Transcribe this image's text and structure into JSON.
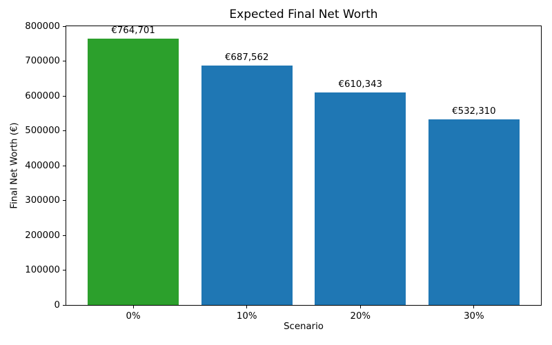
{
  "figure": {
    "background": "#ffffff"
  },
  "chart_data": {
    "type": "bar",
    "title": "Expected Final Net Worth",
    "xlabel": "Scenario",
    "ylabel": "Final Net Worth (€)",
    "categories": [
      "0%",
      "10%",
      "20%",
      "30%"
    ],
    "values": [
      764701,
      687562,
      610343,
      532310
    ],
    "bar_labels": [
      "€764,701",
      "€687,562",
      "€610,343",
      "€532,310"
    ],
    "bar_colors": [
      "#2ca02c",
      "#1f77b4",
      "#1f77b4",
      "#1f77b4"
    ],
    "ylim": [
      0,
      800000
    ],
    "yticks": [
      0,
      100000,
      200000,
      300000,
      400000,
      500000,
      600000,
      700000,
      800000
    ],
    "ytick_labels": [
      "0",
      "100000",
      "200000",
      "300000",
      "400000",
      "500000",
      "600000",
      "700000",
      "800000"
    ],
    "bar_width_fraction": 0.8,
    "grid": false,
    "legend": null
  }
}
